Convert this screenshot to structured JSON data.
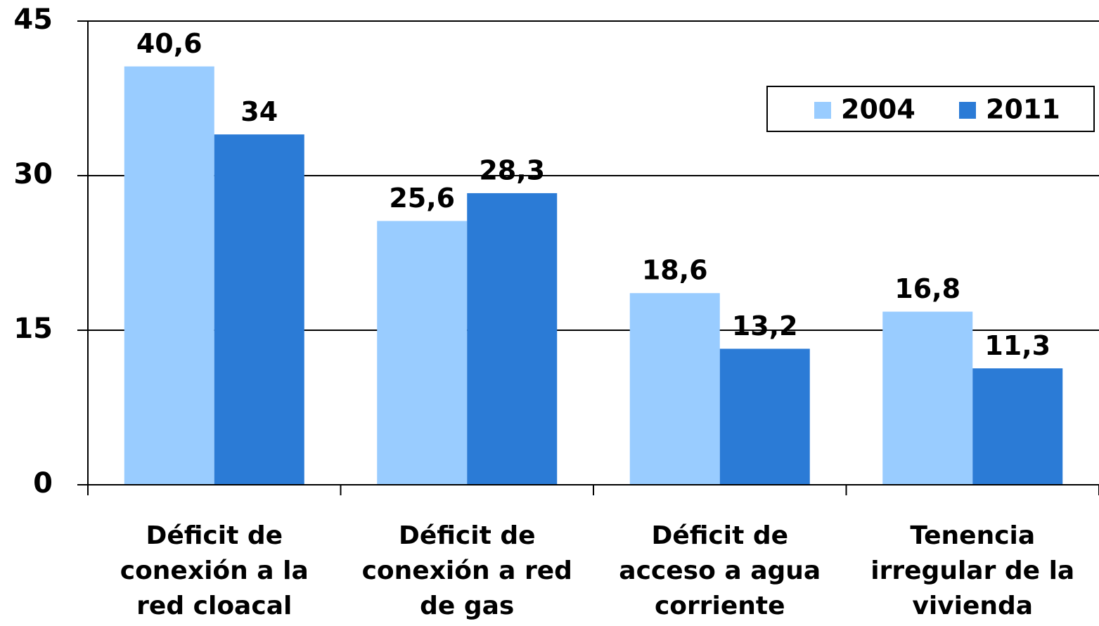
{
  "chart_data": {
    "type": "bar",
    "categories": [
      "Déficit de conexión a la red cloacal",
      "Déficit de conexión a red de gas",
      "Déficit de acceso a agua corriente",
      "Tenencia irregular de la vivienda"
    ],
    "series": [
      {
        "name": "2004",
        "color": "#99ccff",
        "values": [
          40.6,
          25.6,
          18.6,
          16.8
        ],
        "value_labels": [
          "40,6",
          "25,6",
          "18,6",
          "16,8"
        ]
      },
      {
        "name": "2011",
        "color": "#2b7bd6",
        "values": [
          34,
          28.3,
          13.2,
          11.3
        ],
        "value_labels": [
          "34",
          "28,3",
          "13,2",
          "11,3"
        ]
      }
    ],
    "ylim": [
      0,
      45
    ],
    "yticks": [
      0,
      15,
      30,
      45
    ],
    "grid": true,
    "legend": "upper right"
  }
}
